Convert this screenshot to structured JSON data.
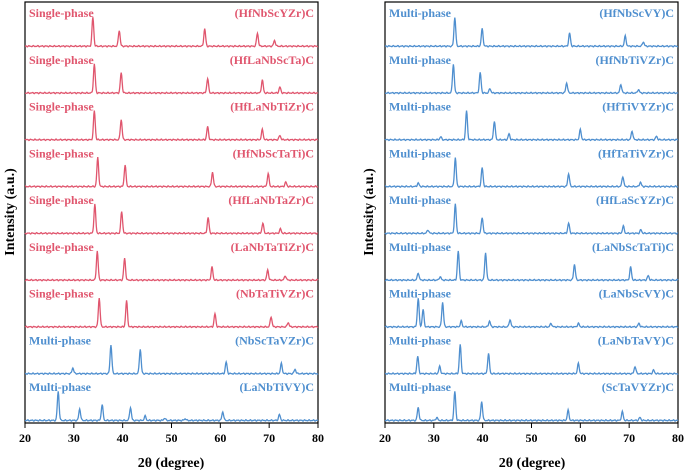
{
  "colors": {
    "single": "#e0566e",
    "multi": "#4f8fcf",
    "axis": "#000000"
  },
  "chart_data": [
    {
      "type": "line",
      "panel": "left",
      "xlabel": "2θ (degree)",
      "ylabel": "Intensity (a.u.)",
      "xlim": [
        20,
        80
      ],
      "xticks": [
        20,
        30,
        40,
        50,
        60,
        70,
        80
      ],
      "series": [
        {
          "name": "(HfNbScYZr)C",
          "phase": "Single-phase",
          "peaks": [
            [
              33.9,
              1.0
            ],
            [
              39.3,
              0.55
            ],
            [
              56.8,
              0.6
            ],
            [
              67.6,
              0.45
            ],
            [
              71.1,
              0.2
            ]
          ]
        },
        {
          "name": "(HfLaNbScTa)C",
          "phase": "Single-phase",
          "peaks": [
            [
              34.2,
              1.0
            ],
            [
              39.7,
              0.7
            ],
            [
              57.4,
              0.5
            ],
            [
              68.6,
              0.45
            ],
            [
              72.2,
              0.2
            ]
          ]
        },
        {
          "name": "(HfLaNbTiZr)C",
          "phase": "Single-phase",
          "peaks": [
            [
              34.2,
              1.0
            ],
            [
              39.7,
              0.7
            ],
            [
              57.4,
              0.45
            ],
            [
              68.6,
              0.35
            ],
            [
              72.2,
              0.15
            ]
          ]
        },
        {
          "name": "(HfNbScTaTi)C",
          "phase": "Single-phase",
          "peaks": [
            [
              34.9,
              1.0
            ],
            [
              40.5,
              0.75
            ],
            [
              58.4,
              0.5
            ],
            [
              69.8,
              0.45
            ],
            [
              73.4,
              0.15
            ]
          ]
        },
        {
          "name": "(HfLaNbTaZr)C",
          "phase": "Single-phase",
          "peaks": [
            [
              34.3,
              1.0
            ],
            [
              39.8,
              0.75
            ],
            [
              57.5,
              0.55
            ],
            [
              68.7,
              0.35
            ],
            [
              72.3,
              0.15
            ]
          ]
        },
        {
          "name": "(LaNbTaTiZr)C",
          "phase": "Single-phase",
          "peaks": [
            [
              34.8,
              1.0
            ],
            [
              40.4,
              0.75
            ],
            [
              58.3,
              0.45
            ],
            [
              69.7,
              0.35
            ],
            [
              73.3,
              0.15
            ]
          ]
        },
        {
          "name": "(NbTaTiVZr)C",
          "phase": "Single-phase",
          "peaks": [
            [
              35.2,
              1.0
            ],
            [
              40.8,
              0.9
            ],
            [
              58.9,
              0.45
            ],
            [
              70.4,
              0.35
            ],
            [
              73.9,
              0.15
            ]
          ]
        },
        {
          "name": "(NbScTaVZr)C",
          "phase": "Multi-phase",
          "peaks": [
            [
              29.8,
              0.2
            ],
            [
              37.6,
              1.0
            ],
            [
              43.6,
              0.85
            ],
            [
              61.2,
              0.4
            ],
            [
              72.5,
              0.35
            ],
            [
              75.3,
              0.15
            ]
          ]
        },
        {
          "name": "(LaNbTiVY)C",
          "phase": "Multi-phase",
          "peaks": [
            [
              26.8,
              1.0
            ],
            [
              31.2,
              0.4
            ],
            [
              35.8,
              0.55
            ],
            [
              41.6,
              0.45
            ],
            [
              44.6,
              0.15
            ],
            [
              48.6,
              0.08
            ],
            [
              52.8,
              0.06
            ],
            [
              60.5,
              0.3
            ],
            [
              72.1,
              0.2
            ]
          ]
        }
      ]
    },
    {
      "type": "line",
      "panel": "right",
      "xlabel": "2θ (degree)",
      "ylabel": "Intensity (a.u.)",
      "xlim": [
        20,
        80
      ],
      "xticks": [
        20,
        30,
        40,
        50,
        60,
        70,
        80
      ],
      "series": [
        {
          "name": "(HfNbScVY)C",
          "phase": "Multi-phase",
          "peaks": [
            [
              34.3,
              1.0
            ],
            [
              39.9,
              0.6
            ],
            [
              57.8,
              0.45
            ],
            [
              69.2,
              0.35
            ],
            [
              72.9,
              0.15
            ]
          ]
        },
        {
          "name": "(HfNbTiVZr)C",
          "phase": "Multi-phase",
          "peaks": [
            [
              34.0,
              1.0
            ],
            [
              39.5,
              0.7
            ],
            [
              41.5,
              0.15
            ],
            [
              57.2,
              0.35
            ],
            [
              68.3,
              0.3
            ],
            [
              71.9,
              0.12
            ]
          ]
        },
        {
          "name": "(HfTiVYZr)C",
          "phase": "Multi-phase",
          "peaks": [
            [
              31.4,
              0.1
            ],
            [
              36.7,
              1.0
            ],
            [
              42.4,
              0.65
            ],
            [
              45.4,
              0.2
            ],
            [
              60.0,
              0.35
            ],
            [
              70.6,
              0.3
            ],
            [
              75.6,
              0.12
            ]
          ]
        },
        {
          "name": "(HfTaTiVZr)C",
          "phase": "Multi-phase",
          "peaks": [
            [
              26.8,
              0.12
            ],
            [
              34.4,
              1.0
            ],
            [
              39.9,
              0.65
            ],
            [
              57.6,
              0.45
            ],
            [
              68.7,
              0.35
            ],
            [
              72.3,
              0.15
            ]
          ]
        },
        {
          "name": "(HfLaScYZr)C",
          "phase": "Multi-phase",
          "peaks": [
            [
              28.8,
              0.12
            ],
            [
              34.4,
              1.0
            ],
            [
              39.9,
              0.55
            ],
            [
              57.6,
              0.35
            ],
            [
              68.8,
              0.25
            ],
            [
              72.4,
              0.12
            ]
          ]
        },
        {
          "name": "(LaNbScTaTi)C",
          "phase": "Multi-phase",
          "peaks": [
            [
              26.8,
              0.25
            ],
            [
              31.3,
              0.12
            ],
            [
              35.0,
              1.0
            ],
            [
              40.6,
              0.95
            ],
            [
              58.8,
              0.55
            ],
            [
              70.3,
              0.45
            ],
            [
              73.9,
              0.15
            ]
          ]
        },
        {
          "name": "(LaNbScVY)C",
          "phase": "Multi-phase",
          "peaks": [
            [
              26.8,
              1.0
            ],
            [
              27.8,
              0.6
            ],
            [
              31.8,
              0.85
            ],
            [
              35.6,
              0.2
            ],
            [
              41.4,
              0.2
            ],
            [
              45.6,
              0.25
            ],
            [
              54.0,
              0.12
            ],
            [
              59.6,
              0.12
            ],
            [
              72.0,
              0.12
            ]
          ]
        },
        {
          "name": "(LaNbTaVY)C",
          "phase": "Multi-phase",
          "peaks": [
            [
              26.7,
              0.6
            ],
            [
              31.2,
              0.25
            ],
            [
              35.4,
              1.0
            ],
            [
              41.2,
              0.7
            ],
            [
              59.6,
              0.35
            ],
            [
              71.2,
              0.25
            ],
            [
              75.0,
              0.12
            ]
          ]
        },
        {
          "name": "(ScTaVYZr)C",
          "phase": "Multi-phase",
          "peaks": [
            [
              26.8,
              0.45
            ],
            [
              30.6,
              0.1
            ],
            [
              34.3,
              1.0
            ],
            [
              39.8,
              0.65
            ],
            [
              57.5,
              0.35
            ],
            [
              68.6,
              0.3
            ],
            [
              72.2,
              0.1
            ]
          ]
        }
      ]
    }
  ]
}
